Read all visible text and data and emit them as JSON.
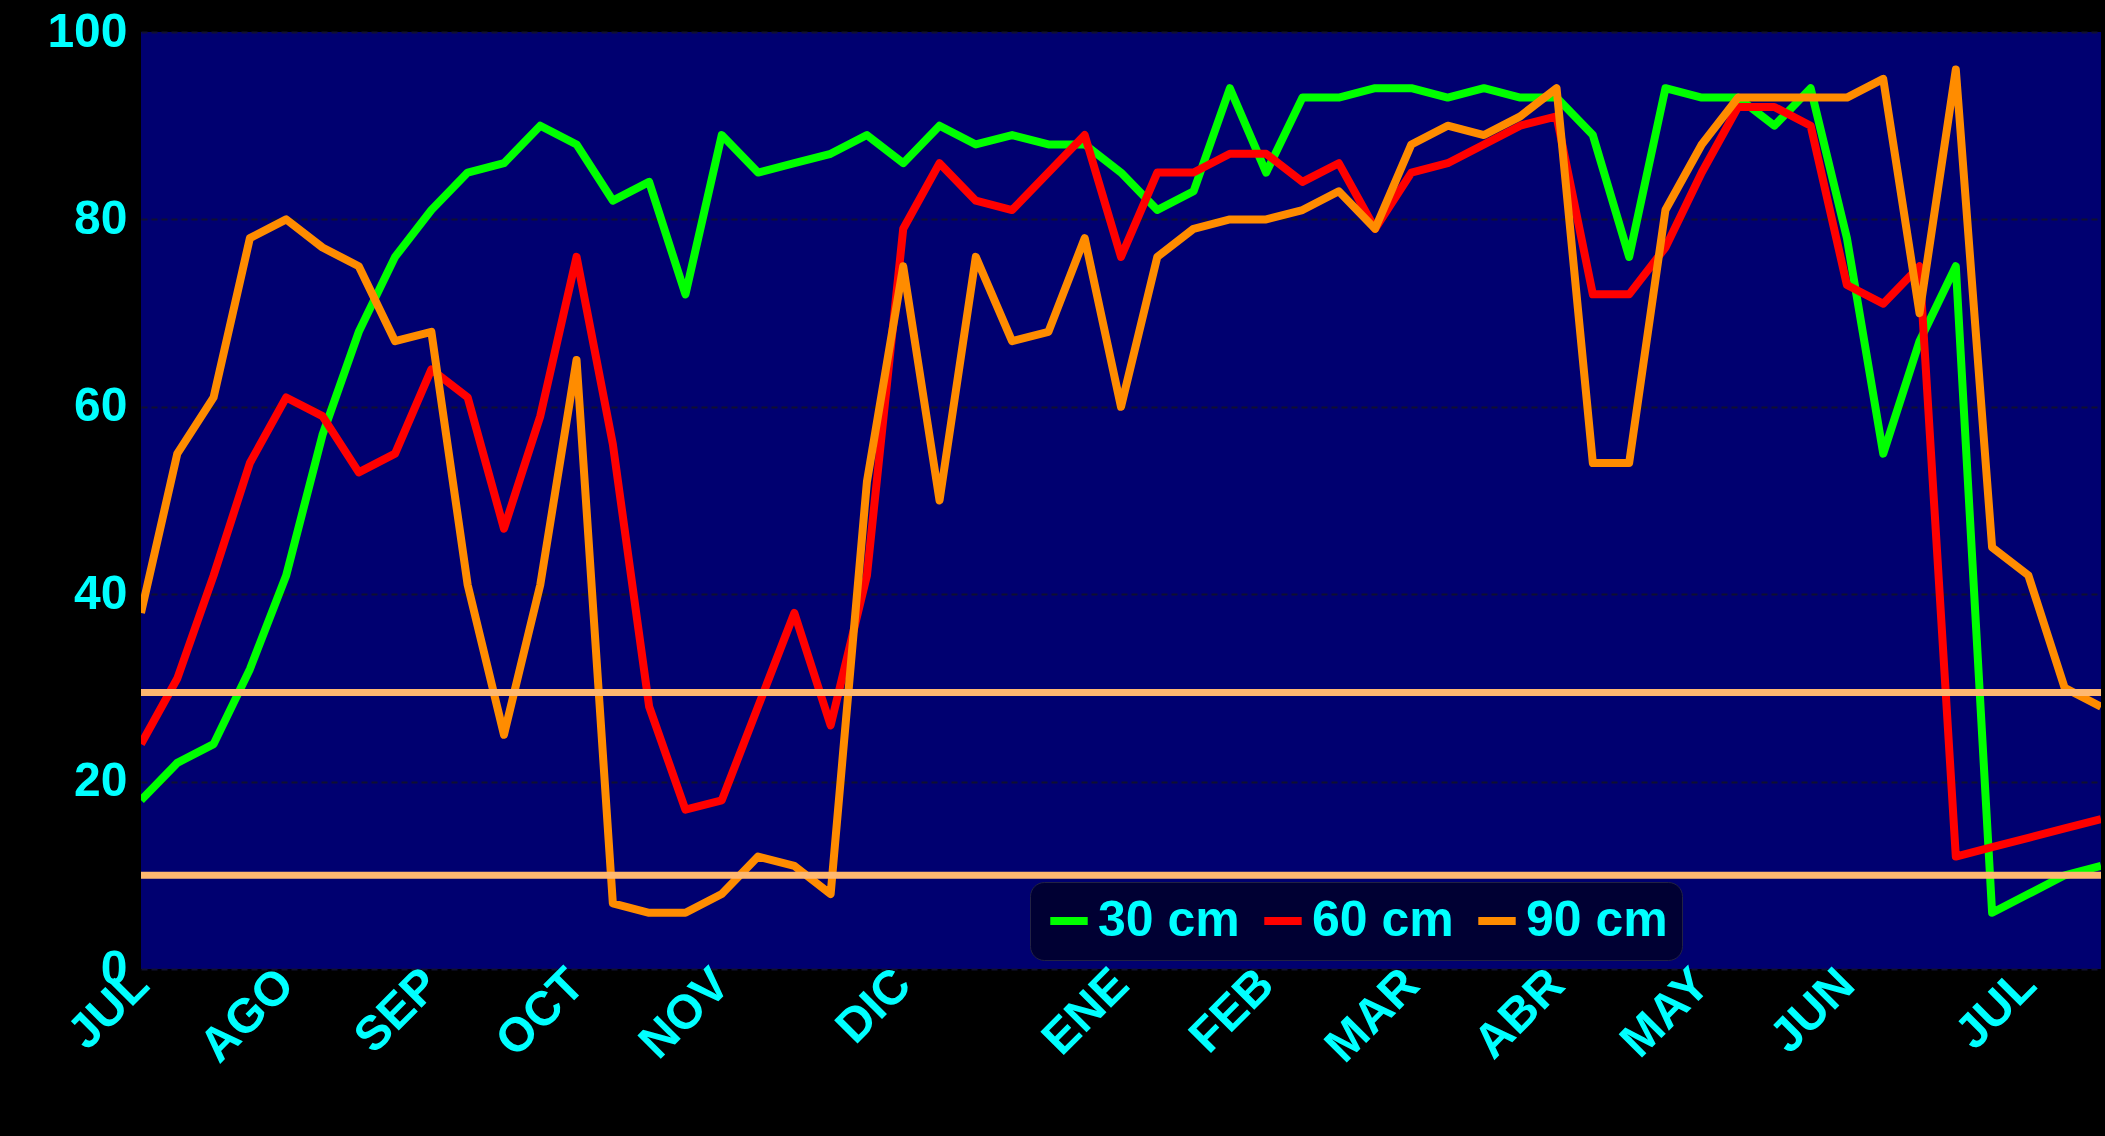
{
  "chart_data": {
    "type": "line",
    "categories": [
      "JUL",
      null,
      null,
      null,
      "AGO",
      null,
      null,
      null,
      "SEP",
      null,
      null,
      null,
      "OCT",
      null,
      null,
      null,
      "NOV",
      null,
      null,
      null,
      null,
      "DIC",
      null,
      null,
      null,
      null,
      null,
      "ENE",
      null,
      null,
      null,
      "FEB",
      null,
      null,
      null,
      "MAR",
      null,
      null,
      null,
      "ABR",
      null,
      null,
      null,
      "MAY",
      null,
      null,
      null,
      "JUN",
      null,
      null,
      null,
      null,
      "JUL",
      null,
      null
    ],
    "series": [
      {
        "name": "30 cm",
        "color": "#00ff00",
        "values": [
          18,
          22,
          24,
          32,
          42,
          57,
          68,
          76,
          81,
          85,
          86,
          90,
          88,
          82,
          84,
          72,
          89,
          85,
          86,
          87,
          89,
          86,
          90,
          88,
          89,
          88,
          88,
          85,
          81,
          83,
          94,
          85,
          93,
          93,
          94,
          94,
          93,
          94,
          93,
          93,
          89,
          76,
          94,
          93,
          93,
          90,
          94,
          78,
          55,
          67,
          75,
          6,
          8,
          10,
          11
        ]
      },
      {
        "name": "60 cm",
        "color": "#ff0000",
        "values": [
          24,
          31,
          42,
          54,
          61,
          59,
          53,
          55,
          64,
          61,
          47,
          59,
          76,
          56,
          28,
          17,
          18,
          28,
          38,
          26,
          42,
          79,
          86,
          82,
          81,
          85,
          89,
          76,
          85,
          85,
          87,
          87,
          84,
          86,
          79,
          85,
          86,
          88,
          90,
          91,
          72,
          72,
          77,
          85,
          92,
          92,
          90,
          73,
          71,
          75,
          12,
          13,
          14,
          15,
          16
        ]
      },
      {
        "name": "90 cm",
        "color": "#ff8c00",
        "values": [
          38,
          55,
          61,
          78,
          80,
          77,
          75,
          67,
          68,
          41,
          25,
          41,
          65,
          7,
          6,
          6,
          8,
          12,
          11,
          8,
          52,
          75,
          50,
          76,
          67,
          68,
          78,
          60,
          76,
          79,
          80,
          80,
          81,
          83,
          79,
          88,
          90,
          89,
          91,
          94,
          54,
          54,
          81,
          88,
          93,
          93,
          93,
          93,
          95,
          70,
          96,
          45,
          42,
          30,
          28
        ]
      }
    ],
    "ylim": [
      0,
      100
    ],
    "yticks": [
      0,
      20,
      40,
      60,
      80,
      100
    ],
    "ref_lines": [
      {
        "axis": "y",
        "value": 29.5,
        "color": "#ffb870"
      },
      {
        "axis": "y",
        "value": 10,
        "color": "#ffb870"
      }
    ],
    "grid": "y",
    "legend": "bottom right",
    "marker": "none",
    "line_style": "solid"
  }
}
